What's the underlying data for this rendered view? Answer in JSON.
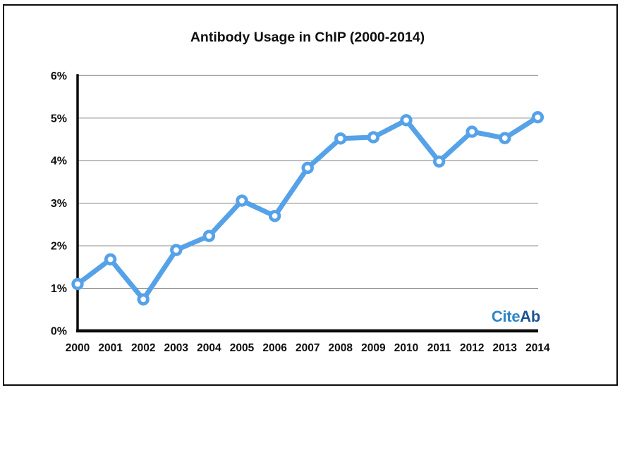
{
  "header": {
    "title": "Antibody Usage in ChIP (2000-2014)"
  },
  "branding": {
    "cite": "Cite",
    "ab": "Ab",
    "cite_color": "#2E86C6",
    "ab_color": "#1D5393"
  },
  "chart_data": {
    "type": "line",
    "title": "Antibody Usage in ChIP (2000-2014)",
    "categories": [
      "2000",
      "2001",
      "2002",
      "2003",
      "2004",
      "2005",
      "2006",
      "2007",
      "2008",
      "2009",
      "2010",
      "2011",
      "2012",
      "2013",
      "2014"
    ],
    "values": [
      1.1,
      1.68,
      0.74,
      1.9,
      2.23,
      3.06,
      2.7,
      3.83,
      4.52,
      4.55,
      4.95,
      3.98,
      4.68,
      4.53,
      5.02
    ],
    "xlabel": "",
    "ylabel": "",
    "ylim": [
      0,
      6
    ],
    "ytick_labels": [
      "0%",
      "1%",
      "2%",
      "3%",
      "4%",
      "5%",
      "6%"
    ],
    "grid": "horizontal",
    "legend": "none",
    "line_color": "#56A2E8",
    "marker": "circle-open",
    "marker_fill": "#ffffff",
    "gridline_color": "#7f7f7f",
    "axis_color": "#0b0b0b"
  }
}
